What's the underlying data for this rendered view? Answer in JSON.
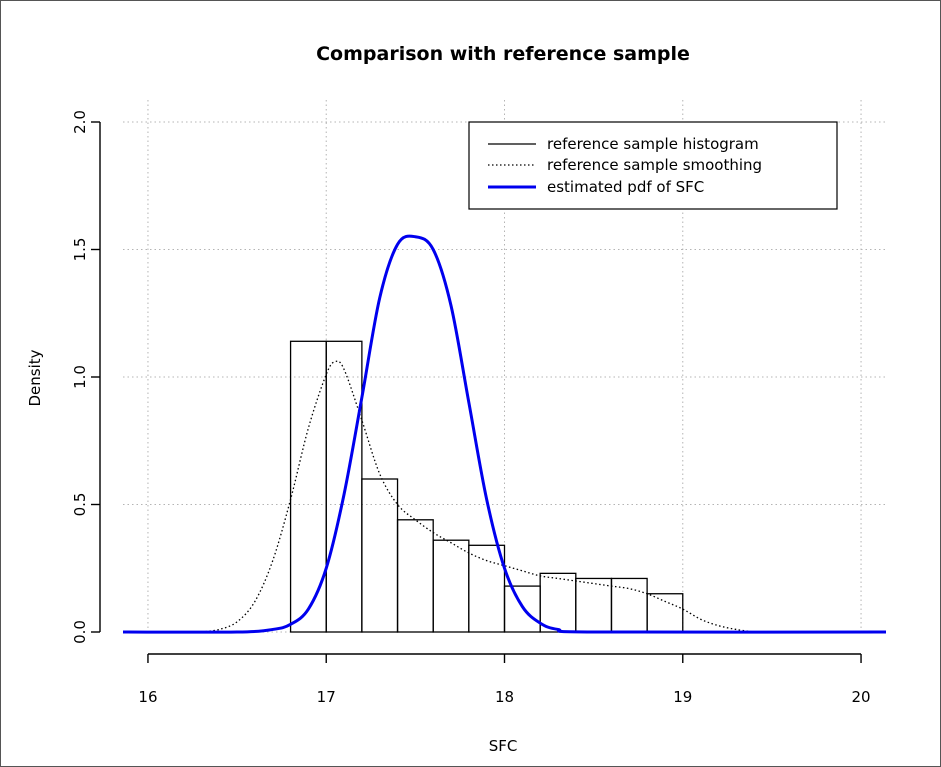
{
  "chart_data": {
    "type": "bar",
    "title": "Comparison with reference sample",
    "xlabel": "SFC",
    "ylabel": "Density",
    "xlim": [
      15.86,
      20.14
    ],
    "ylim": [
      0,
      2.0
    ],
    "x_ticks": [
      "16",
      "17",
      "18",
      "19",
      "20"
    ],
    "x_tick_values": [
      16,
      17,
      18,
      19,
      20
    ],
    "y_ticks": [
      "0.0",
      "0.5",
      "1.0",
      "1.5",
      "2.0"
    ],
    "y_tick_values": [
      0,
      0.5,
      1.0,
      1.5,
      2.0
    ],
    "grid": true,
    "legend_position": "top-right",
    "histogram": {
      "name": "reference sample histogram",
      "bins": [
        {
          "x0": 16.8,
          "x1": 17.0,
          "value": 1.14
        },
        {
          "x0": 17.0,
          "x1": 17.2,
          "value": 1.14
        },
        {
          "x0": 17.2,
          "x1": 17.4,
          "value": 0.6
        },
        {
          "x0": 17.4,
          "x1": 17.6,
          "value": 0.44
        },
        {
          "x0": 17.6,
          "x1": 17.8,
          "value": 0.36
        },
        {
          "x0": 17.8,
          "x1": 18.0,
          "value": 0.34
        },
        {
          "x0": 18.0,
          "x1": 18.2,
          "value": 0.18
        },
        {
          "x0": 18.2,
          "x1": 18.4,
          "value": 0.23
        },
        {
          "x0": 18.4,
          "x1": 18.6,
          "value": 0.21
        },
        {
          "x0": 18.6,
          "x1": 18.8,
          "value": 0.21
        },
        {
          "x0": 18.8,
          "x1": 19.0,
          "value": 0.15
        }
      ]
    },
    "series": [
      {
        "name": "reference sample smoothing",
        "style": "dotted",
        "color": "#000000",
        "x": [
          16.3,
          16.4,
          16.5,
          16.6,
          16.7,
          16.8,
          16.9,
          17.0,
          17.05,
          17.1,
          17.2,
          17.3,
          17.4,
          17.5,
          17.6,
          17.7,
          17.8,
          17.9,
          18.0,
          18.1,
          18.2,
          18.3,
          18.4,
          18.5,
          18.6,
          18.7,
          18.8,
          18.9,
          19.0,
          19.1,
          19.2,
          19.3,
          19.4
        ],
        "y": [
          0.0,
          0.01,
          0.04,
          0.12,
          0.28,
          0.52,
          0.8,
          1.01,
          1.06,
          1.03,
          0.83,
          0.62,
          0.5,
          0.44,
          0.39,
          0.35,
          0.31,
          0.28,
          0.26,
          0.24,
          0.22,
          0.21,
          0.2,
          0.19,
          0.18,
          0.17,
          0.15,
          0.12,
          0.09,
          0.05,
          0.025,
          0.01,
          0.0
        ]
      },
      {
        "name": "estimated pdf of SFC",
        "style": "solid",
        "color": "#0000ee",
        "x": [
          15.86,
          16.5,
          16.7,
          16.8,
          16.9,
          17.0,
          17.1,
          17.2,
          17.3,
          17.4,
          17.5,
          17.6,
          17.7,
          17.8,
          17.9,
          18.0,
          18.1,
          18.2,
          18.3,
          18.5,
          20.14
        ],
        "y": [
          0.0,
          0.0,
          0.01,
          0.03,
          0.09,
          0.25,
          0.54,
          0.92,
          1.31,
          1.52,
          1.55,
          1.5,
          1.28,
          0.9,
          0.52,
          0.25,
          0.1,
          0.035,
          0.01,
          0.0,
          0.0
        ]
      }
    ]
  }
}
